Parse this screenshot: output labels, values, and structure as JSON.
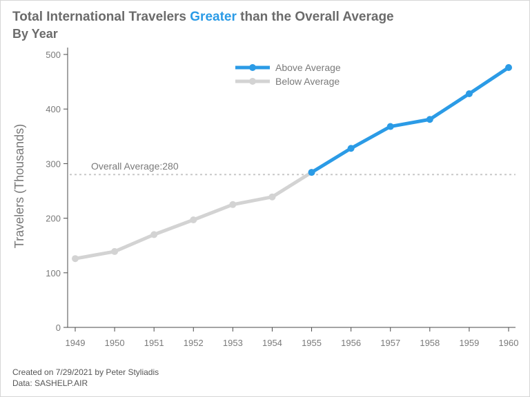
{
  "title": {
    "prefix": "Total International Travelers ",
    "highlight": "Greater",
    "suffix": " than the Overall Average"
  },
  "subtitle": "By Year",
  "footnotes": {
    "created": "Created on 7/29/2021 by Peter Styliadis",
    "data": "Data: SASHELP.AIR"
  },
  "colors": {
    "above": "#2b9be6",
    "below": "#d3d3d3",
    "text": "#6b6b6b"
  },
  "chart_data": {
    "type": "line",
    "x": [
      1949,
      1950,
      1951,
      1952,
      1953,
      1954,
      1955,
      1956,
      1957,
      1958,
      1959,
      1960
    ],
    "values": [
      126,
      139,
      170,
      197,
      225,
      239,
      284,
      328,
      368,
      381,
      428,
      476
    ],
    "ylabel": "Travelers (Thousands)",
    "xlabel": "",
    "ylim": [
      0,
      500
    ],
    "yticks": [
      0,
      100,
      200,
      300,
      400,
      500
    ],
    "reference_line": {
      "value": 280,
      "label": "Overall Average:280"
    },
    "series": [
      {
        "name": "Above Average",
        "x": [
          1955,
          1956,
          1957,
          1958,
          1959,
          1960
        ],
        "values": [
          284,
          328,
          368,
          381,
          428,
          476
        ]
      },
      {
        "name": "Below Average",
        "x": [
          1949,
          1950,
          1951,
          1952,
          1953,
          1954,
          1955
        ],
        "values": [
          126,
          139,
          170,
          197,
          225,
          239,
          284
        ]
      }
    ],
    "legend_position": "top-center",
    "grid": false
  }
}
